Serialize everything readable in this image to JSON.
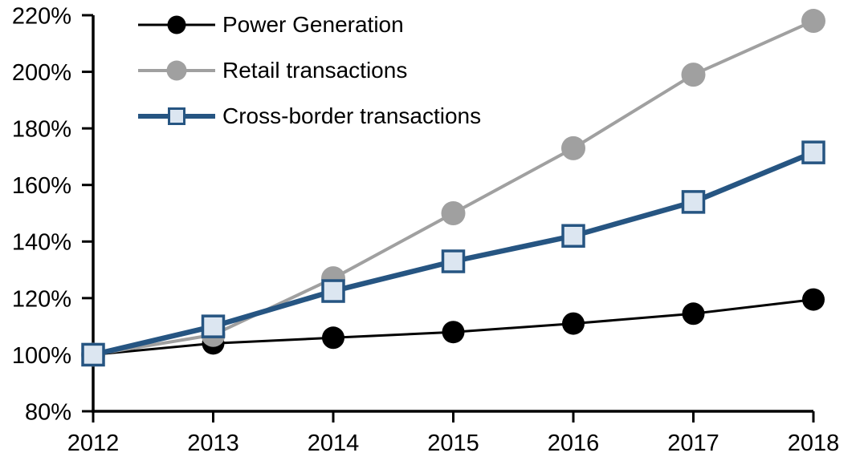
{
  "chart_data": {
    "type": "line",
    "title": "",
    "xlabel": "",
    "ylabel": "",
    "categories": [
      "2012",
      "2013",
      "2014",
      "2015",
      "2016",
      "2017",
      "2018"
    ],
    "series": [
      {
        "name": "Power Generation",
        "values": [
          100,
          104,
          106,
          108,
          111,
          114.5,
          119.5
        ],
        "color": "#000000",
        "marker": "circle",
        "marker_fill": "#000000",
        "marker_size": 28,
        "line_width": 3
      },
      {
        "name": "Retail transactions",
        "values": [
          100,
          107,
          127,
          150,
          173,
          199,
          218
        ],
        "color": "#A0A0A0",
        "marker": "circle",
        "marker_fill": "#A0A0A0",
        "marker_size": 30,
        "line_width": 4
      },
      {
        "name": "Cross-border transactions",
        "values": [
          100,
          110,
          122.5,
          133,
          142,
          154,
          171.5
        ],
        "color": "#265582",
        "marker": "square",
        "marker_fill": "#DCE6F1",
        "marker_size": 26,
        "line_width": 6.5
      }
    ],
    "ylim": [
      80,
      220
    ],
    "ytick_step": 20,
    "yticks": [
      "80%",
      "100%",
      "120%",
      "140%",
      "160%",
      "180%",
      "200%",
      "220%"
    ],
    "grid": false,
    "legend_position": "top-left",
    "axis_color": "#000000"
  }
}
